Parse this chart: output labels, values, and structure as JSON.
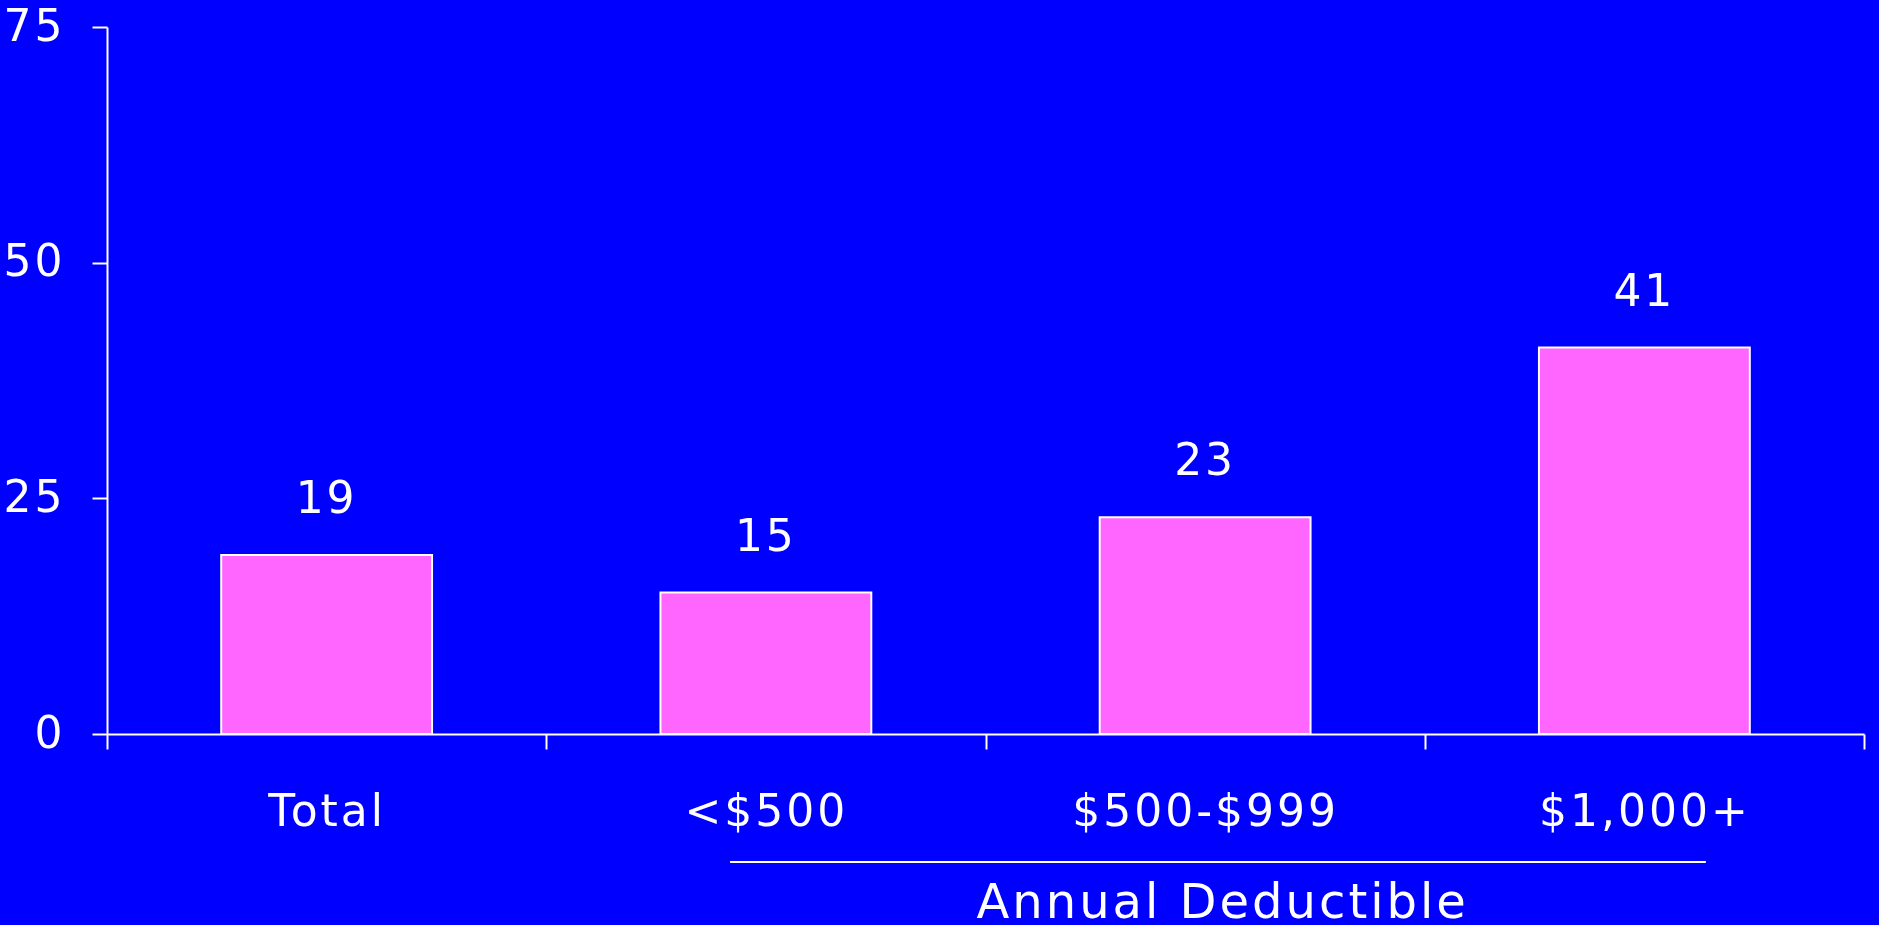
{
  "chart_data": {
    "type": "bar",
    "categories": [
      "Total",
      "<$500",
      "$500-$999",
      "$1,000+"
    ],
    "values": [
      19,
      15,
      23,
      41
    ],
    "color": "#ff66ff",
    "ylim": [
      0,
      75
    ],
    "yticks": [
      0,
      25,
      50,
      75
    ],
    "data_labels": true,
    "annotations": [
      "Annual Deductible"
    ]
  }
}
